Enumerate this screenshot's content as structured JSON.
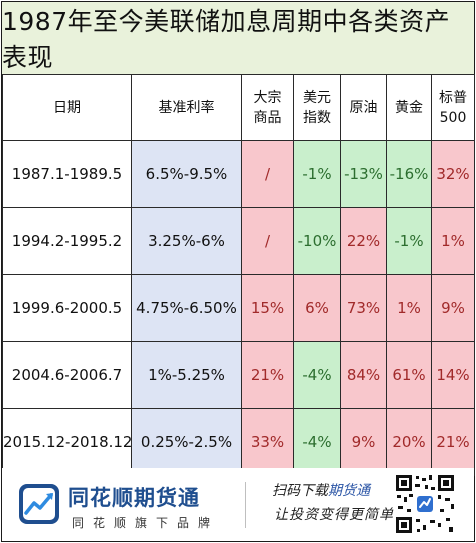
{
  "title": "1987年至今美联储加息周期中各类资产表现",
  "headers": {
    "date": "日期",
    "rate": "基准利率",
    "commodity_1": "大宗",
    "commodity_2": "商品",
    "usd_1": "美元",
    "usd_2": "指数",
    "oil": "原油",
    "gold": "黄金",
    "sp_1": "标普",
    "sp_2": "500"
  },
  "rows": [
    {
      "date": "1987.1-1989.5",
      "rate": "6.5%-9.5%",
      "commodity": "/",
      "usd": "-1%",
      "oil": "-13%",
      "gold": "-16%",
      "sp500": "32%"
    },
    {
      "date": "1994.2-1995.2",
      "rate": "3.25%-6%",
      "commodity": "/",
      "usd": "-10%",
      "oil": "22%",
      "gold": "-1%",
      "sp500": "1%"
    },
    {
      "date": "1999.6-2000.5",
      "rate": "4.75%-6.50%",
      "commodity": "15%",
      "usd": "6%",
      "oil": "73%",
      "gold": "1%",
      "sp500": "9%"
    },
    {
      "date": "2004.6-2006.7",
      "rate": "1%-5.25%",
      "commodity": "21%",
      "usd": "-4%",
      "oil": "84%",
      "gold": "61%",
      "sp500": "14%"
    },
    {
      "date": "2015.12-2018.12",
      "rate": "0.25%-2.5%",
      "commodity": "33%",
      "usd": "-4%",
      "oil": "9%",
      "gold": "20%",
      "sp500": "21%"
    }
  ],
  "colors": {
    "title_bg": "#e9f2db",
    "rate_bg": "#dde4f4",
    "positive_bg": "#f8c7cc",
    "negative_bg": "#c9efcc",
    "brand": "#1f4e8f"
  },
  "footer": {
    "brand_name": "同花顺期货通",
    "brand_sub": "同花顺旗下品牌",
    "scan_prefix": "扫码下载",
    "scan_highlight": "期货通",
    "slogan": "让投资变得更简单",
    "logo_icon": "chart-logo-icon",
    "qr_icon": "qr-code-icon"
  }
}
